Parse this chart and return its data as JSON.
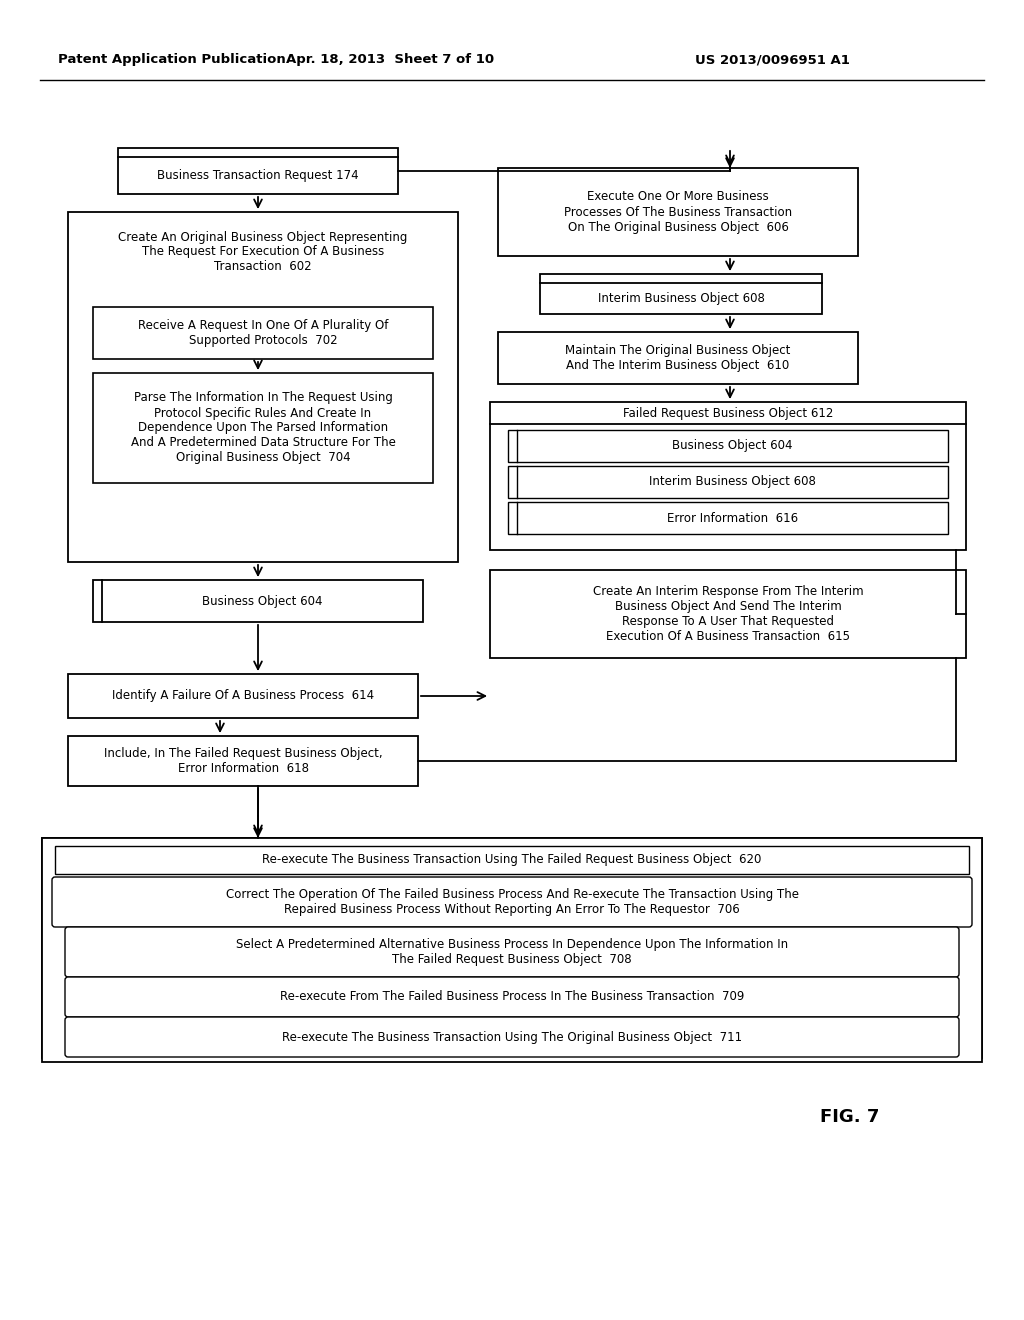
{
  "bg_color": "#ffffff",
  "header_text1": "Patent Application Publication",
  "header_text2": "Apr. 18, 2013  Sheet 7 of 10",
  "header_text3": "US 2013/0096951 A1",
  "fig_label": "FIG. 7"
}
